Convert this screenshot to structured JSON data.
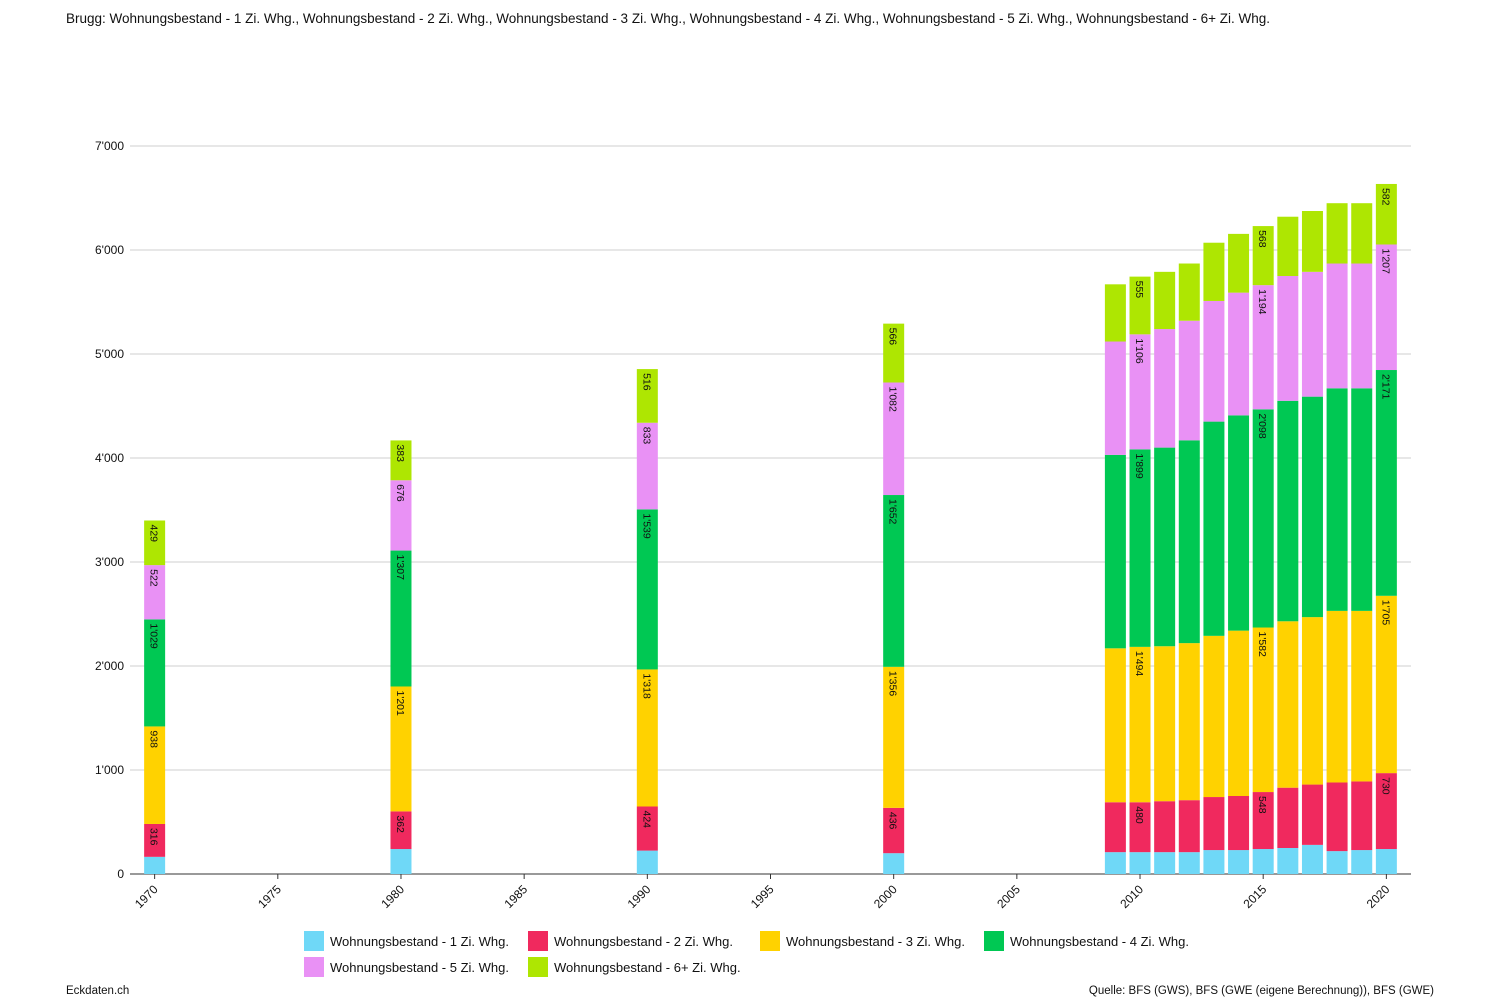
{
  "title": "Brugg: Wohnungsbestand - 1 Zi. Whg., Wohnungsbestand - 2 Zi. Whg., Wohnungsbestand - 3 Zi. Whg., Wohnungsbestand - 4 Zi. Whg., Wohnungsbestand - 5 Zi. Whg., Wohnungsbestand - 6+ Zi. Whg.",
  "footer": {
    "brand": "Eckdaten.ch",
    "source": "Quelle: BFS (GWS), BFS (GWE (eigene Berechnung)), BFS (GWE)"
  },
  "chart_data": {
    "type": "bar",
    "stacked": true,
    "x": [
      1970,
      1980,
      1990,
      2000,
      2009,
      2010,
      2011,
      2012,
      2013,
      2014,
      2015,
      2016,
      2017,
      2018,
      2019,
      2020
    ],
    "xlim": [
      1969,
      2021
    ],
    "x_ticks": [
      "1970",
      "1975",
      "1980",
      "1985",
      "1990",
      "1995",
      "2000",
      "2005",
      "2010",
      "2015",
      "2020"
    ],
    "ylim": [
      0,
      7000
    ],
    "y_ticks": [
      "0",
      "1'000",
      "2'000",
      "3'000",
      "4'000",
      "5'000",
      "6'000",
      "7'000"
    ],
    "grid": true,
    "legend_position": "bottom",
    "series": [
      {
        "name": "Wohnungsbestand - 1 Zi. Whg.",
        "color": "#6fd8f7",
        "values": [
          165,
          240,
          225,
          200,
          210,
          210,
          210,
          210,
          230,
          230,
          240,
          250,
          280,
          220,
          230,
          240
        ]
      },
      {
        "name": "Wohnungsbestand - 2 Zi. Whg.",
        "color": "#f0295e",
        "values": [
          316,
          362,
          424,
          436,
          480,
          480,
          490,
          500,
          510,
          520,
          548,
          580,
          580,
          660,
          660,
          730
        ]
      },
      {
        "name": "Wohnungsbestand - 3 Zi. Whg.",
        "color": "#ffd200",
        "values": [
          938,
          1201,
          1318,
          1356,
          1480,
          1494,
          1490,
          1510,
          1550,
          1590,
          1582,
          1600,
          1610,
          1650,
          1640,
          1705
        ]
      },
      {
        "name": "Wohnungsbestand - 4 Zi. Whg.",
        "color": "#00c853",
        "values": [
          1029,
          1307,
          1539,
          1652,
          1860,
          1899,
          1910,
          1950,
          2060,
          2070,
          2098,
          2120,
          2120,
          2140,
          2140,
          2171
        ]
      },
      {
        "name": "Wohnungsbestand - 5 Zi. Whg.",
        "color": "#e991f5",
        "values": [
          522,
          676,
          833,
          1082,
          1090,
          1106,
          1140,
          1150,
          1160,
          1180,
          1194,
          1200,
          1200,
          1200,
          1200,
          1207
        ]
      },
      {
        "name": "Wohnungsbestand - 6+ Zi. Whg.",
        "color": "#aee602",
        "values": [
          429,
          383,
          516,
          566,
          550,
          555,
          550,
          550,
          560,
          565,
          568,
          570,
          585,
          580,
          580,
          582
        ]
      }
    ],
    "labeled_years": [
      1970,
      1980,
      1990,
      2000,
      2010,
      2015,
      2020
    ]
  }
}
